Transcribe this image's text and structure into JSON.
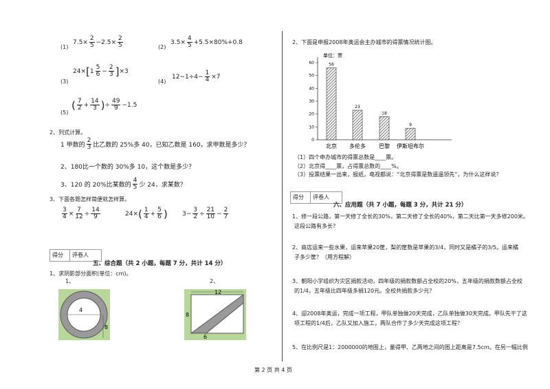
{
  "left": {
    "calc": [
      {
        "label": "(1)",
        "expr": [
          "7.5×",
          {
            "n": "2",
            "d": "5"
          },
          "−2.5×",
          {
            "n": "2",
            "d": "5"
          }
        ]
      },
      {
        "label": "(2)",
        "expr": [
          "3.5×",
          {
            "n": "4",
            "d": "5"
          },
          "+5.5×80%+0.8"
        ]
      },
      {
        "label": "(3)",
        "expr": [
          "24×",
          "[",
          "1",
          {
            "n": "5",
            "d": "6"
          },
          "−",
          {
            "n": "2",
            "d": "3"
          },
          "]",
          "×3"
        ]
      },
      {
        "label": "(4)",
        "expr": [
          "12−1÷4−",
          {
            "n": "1",
            "d": "4"
          },
          "×7"
        ]
      },
      {
        "label": "(5)",
        "expr": [
          "(",
          {
            "n": "7",
            "d": "2"
          },
          "+",
          {
            "n": "14",
            "d": "3"
          },
          ")",
          "÷",
          {
            "n": "49",
            "d": "9"
          },
          "−1.5"
        ]
      }
    ],
    "q2": {
      "heading": "2、列式计算。",
      "items": [
        [
          "1 甲数的",
          {
            "n": "2",
            "d": "3"
          },
          "比乙数的 25%多 40，已知乙数是 160，求甲数是多少？"
        ],
        [
          "2、180比一个数的 30%多 10，这个数是多少？"
        ],
        [
          "3、120 的 20%比某数的",
          {
            "n": "4",
            "d": "5"
          },
          "少 24，求某数？"
        ]
      ]
    },
    "q3": {
      "heading": "3、下面各题怎样简便就怎样算。",
      "exprs": [
        [
          {
            "n": "3",
            "d": "4"
          },
          "×",
          {
            "n": "7",
            "d": "12"
          },
          "÷",
          {
            "n": "14",
            "d": "9"
          }
        ],
        [
          "24×",
          "(",
          {
            "n": "1",
            "d": "4"
          },
          "+",
          {
            "n": "5",
            "d": "6"
          },
          ")"
        ],
        [
          "3−",
          {
            "n": "3",
            "d": "2"
          },
          "÷",
          {
            "n": "21",
            "d": "10"
          },
          "−",
          {
            "n": "2",
            "d": "7"
          }
        ]
      ]
    },
    "score_box": {
      "score": "得分",
      "grader": "评卷人"
    },
    "section5": {
      "title": "五、综合题（共 2 小题，每题 7 分，共计 14 分）",
      "q1": "1、求阴影部分面积(单位：cm)。",
      "fig1_label": "1、",
      "fig2_label": "2、",
      "fig1_dims": [
        "4",
        "8"
      ],
      "fig2_dims": [
        "12",
        "8",
        "6"
      ]
    }
  },
  "right": {
    "intro": "2、下面是申报2008年奥运会主办城市的得票情况统计图。",
    "chart": {
      "type": "bar",
      "ylabel": "单位：票",
      "categories": [
        "北京",
        "多伦多",
        "巴黎",
        "伊斯坦布尔"
      ],
      "values": [
        56,
        23,
        18,
        9
      ],
      "ylim": [
        0,
        60
      ],
      "yticks": [
        0,
        10,
        20,
        30,
        40,
        50,
        60
      ],
      "color": "#555"
    },
    "questions": [
      "（1）四个申办城市的得票总数是____票。",
      "（2）北京得____票，占得票总数的____%。",
      "（3）投票结果一出来，报纸，电视都说：“北京得票是数遥遥领先”，为什么这样说？"
    ],
    "score_box": {
      "score": "得分",
      "grader": "评卷人"
    },
    "section6": {
      "title": "六、应用题（共 7 小题，每题 3 分，共计 21 分）",
      "problems": [
        [
          "1、修一段公路，第一天修了全长的30%，第二天修了全长的40%，第二天比第一天多修200米。",
          "这段公路有多长？"
        ],
        [
          "2、商店运来一些水果，运来苹果20筐，梨的筐数是苹果的3/4，同时又是橘子的3/5。运来橘",
          "子多少筐？（用方程解）"
        ],
        [
          "3、朝阳小学组织为灾区捐款活动，四年级的捐款数额占全校的20%，五年级的捐款数额占全校",
          "的1/4，五年级比四年级多捐120元。全校共捐款多少元？"
        ],
        [
          "4、迎2008年奥运，完成一项工程，甲队单独做20天完成，乙队单独做30天完成。甲队先干了这",
          "项工程的1/4后，乙队又加入施工，两队合作了多少天完成这项工程？"
        ],
        [
          "5、在比例尺是1：2000000的地图上，量得甲、乙两地之间的图上距离是7.5cm。在另一幅比例"
        ]
      ]
    }
  },
  "footer": "第 2 页 共 4 页"
}
